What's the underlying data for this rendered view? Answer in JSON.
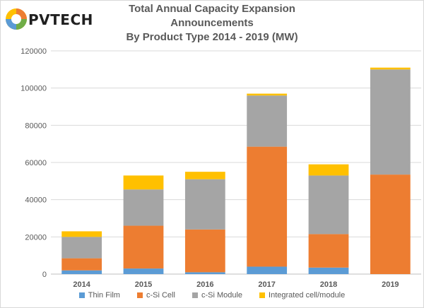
{
  "logo": {
    "text": "PVTECH"
  },
  "chart_data": {
    "type": "bar",
    "stacked": true,
    "title": "Total Annual Capacity Expansion Announcements",
    "subtitle": "By Product Type 2014 - 2019 (MW)",
    "xlabel": "",
    "ylabel": "",
    "categories": [
      "2014",
      "2015",
      "2016",
      "2017",
      "2018",
      "2019"
    ],
    "ylim": [
      0,
      120000
    ],
    "yticks": [
      0,
      20000,
      40000,
      60000,
      80000,
      100000,
      120000
    ],
    "ytick_labels": [
      "0",
      "20000",
      "40000",
      "60000",
      "80000",
      "100000",
      "120000"
    ],
    "grid": true,
    "legend_position": "bottom",
    "series": [
      {
        "name": "Thin Film",
        "color": "#5b9bd5",
        "values": [
          2000,
          3000,
          1000,
          4000,
          3500,
          0
        ]
      },
      {
        "name": "c-Si Cell",
        "color": "#ed7d31",
        "values": [
          6500,
          23000,
          23000,
          64500,
          18000,
          53500
        ]
      },
      {
        "name": "c-Si Module",
        "color": "#a5a5a5",
        "values": [
          11500,
          19500,
          27000,
          27500,
          31500,
          56500
        ]
      },
      {
        "name": "Integrated cell/module",
        "color": "#ffc000",
        "values": [
          3000,
          7500,
          4000,
          1000,
          6000,
          1000
        ]
      }
    ]
  }
}
